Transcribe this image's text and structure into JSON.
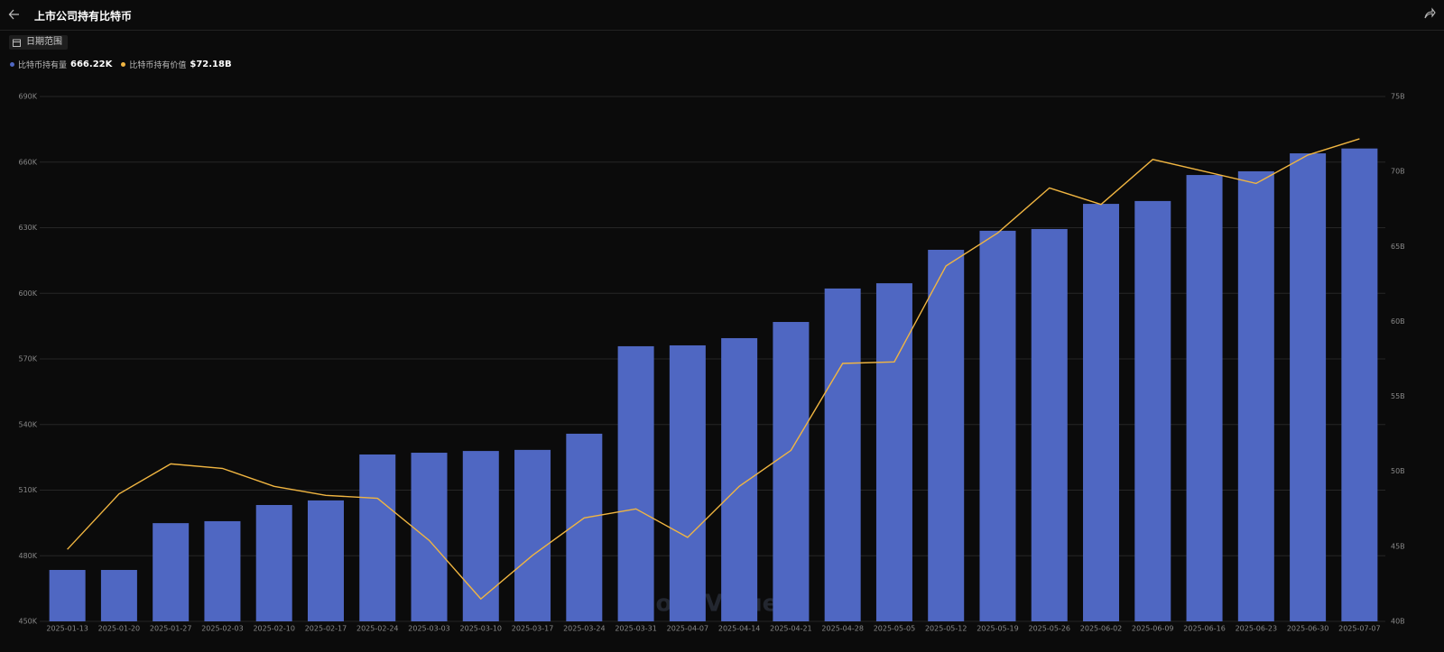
{
  "header": {
    "title": "上市公司持有比特币"
  },
  "controls": {
    "date_range": "日期范围"
  },
  "watermark": "SoSoValue",
  "chart_data": {
    "type": "bar-line",
    "categories": [
      "2025-01-13",
      "2025-01-20",
      "2025-01-27",
      "2025-02-03",
      "2025-02-10",
      "2025-02-17",
      "2025-02-24",
      "2025-03-03",
      "2025-03-10",
      "2025-03-17",
      "2025-03-24",
      "2025-03-31",
      "2025-04-07",
      "2025-04-14",
      "2025-04-21",
      "2025-04-28",
      "2025-05-05",
      "2025-05-12",
      "2025-05-19",
      "2025-05-26",
      "2025-06-02",
      "2025-06-09",
      "2025-06-16",
      "2025-06-23",
      "2025-06-30",
      "2025-07-07"
    ],
    "series": [
      {
        "name": "比特币持有量",
        "type": "bar",
        "color": "#4f67c2",
        "legend_value": "666.22K",
        "values": [
          473.5,
          473.5,
          494.9,
          495.8,
          503.2,
          505.3,
          526.3,
          527.1,
          527.9,
          528.4,
          535.8,
          575.8,
          576.2,
          579.5,
          586.9,
          602.2,
          604.6,
          619.9,
          628.6,
          629.4,
          640.9,
          642.2,
          654.1,
          655.8,
          664.0,
          666.22
        ]
      },
      {
        "name": "比特币持有价值",
        "type": "line",
        "axis": "y2",
        "color": "#f0b541",
        "legend_value": "$72.18B",
        "values": [
          44.8,
          48.5,
          50.5,
          50.2,
          49.0,
          48.4,
          48.2,
          45.4,
          41.5,
          44.4,
          46.9,
          47.5,
          45.6,
          49.0,
          51.4,
          57.2,
          57.3,
          63.7,
          65.9,
          68.9,
          67.8,
          70.8,
          70.0,
          69.2,
          71.1,
          72.18
        ]
      }
    ],
    "ylim": [
      450,
      690
    ],
    "yticks": [
      {
        "value": 450,
        "label": "450K"
      },
      {
        "value": 480,
        "label": "480K"
      },
      {
        "value": 510,
        "label": "510K"
      },
      {
        "value": 540,
        "label": "540K"
      },
      {
        "value": 570,
        "label": "570K"
      },
      {
        "value": 600,
        "label": "600K"
      },
      {
        "value": 630,
        "label": "630K"
      },
      {
        "value": 660,
        "label": "660K"
      },
      {
        "value": 690,
        "label": "690K"
      }
    ],
    "y2lim": [
      40,
      75
    ],
    "y2ticks": [
      {
        "value": 40,
        "label": "40B"
      },
      {
        "value": 45,
        "label": "45B"
      },
      {
        "value": 50,
        "label": "50B"
      },
      {
        "value": 55,
        "label": "55B"
      },
      {
        "value": 60,
        "label": "60B"
      },
      {
        "value": 65,
        "label": "65B"
      },
      {
        "value": 70,
        "label": "70B"
      },
      {
        "value": 75,
        "label": "75B"
      }
    ],
    "grid": true
  }
}
